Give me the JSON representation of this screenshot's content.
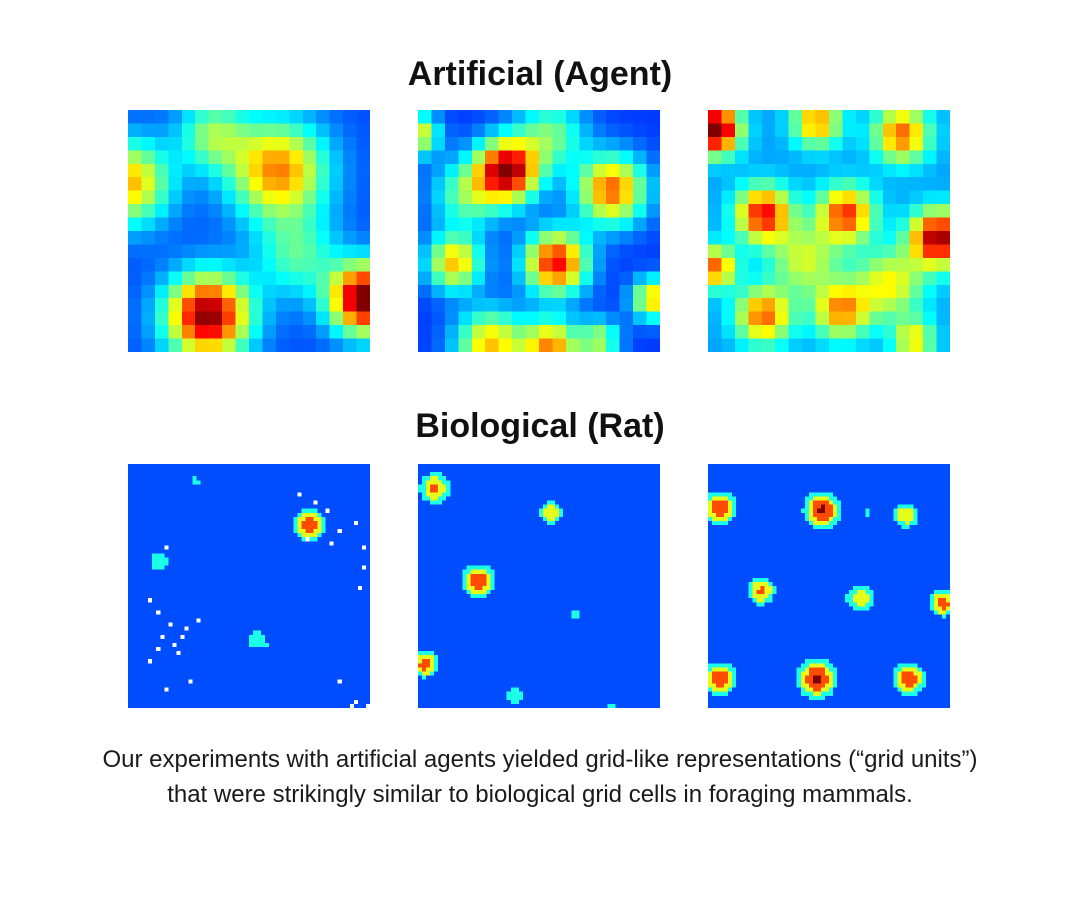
{
  "sections": {
    "agent": {
      "title": "Artificial (Agent)"
    },
    "rat": {
      "title": "Biological (Rat)"
    }
  },
  "caption": "Our experiments with artificial agents yielded grid-like representations (“grid units”) that were strikingly similar to biological grid cells in foraging mammals.",
  "colormap": "jet"
}
